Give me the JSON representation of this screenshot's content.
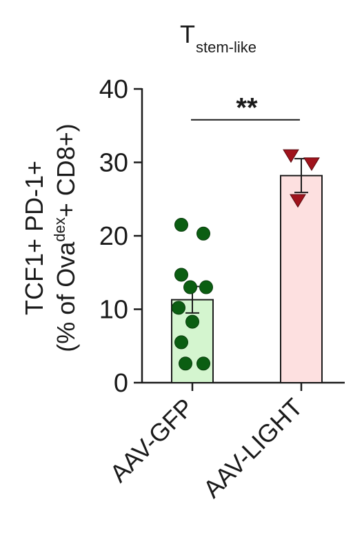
{
  "chart_data": {
    "type": "bar",
    "title": "T",
    "title_subscript": "stem-like",
    "ylabel_line1": "TCF1+ PD-1+",
    "ylabel_line2_pre": "(% of Ova",
    "ylabel_line2_sup": "dex",
    "ylabel_line2_post": "+ CD8+)",
    "ylim": [
      0,
      40
    ],
    "yticks": [
      0,
      10,
      20,
      30,
      40
    ],
    "ytick_labels": [
      "0",
      "10",
      "20",
      "30",
      "40"
    ],
    "categories": [
      "AAV-GFP",
      "AAV-LIGHT"
    ],
    "values": [
      11.3,
      28.2
    ],
    "error_sem": [
      1.8,
      2.3
    ],
    "bar_colors": [
      "#d4f5cf",
      "#fde0e0"
    ],
    "marker_colors": [
      "#0b5e12",
      "#a0131c"
    ],
    "marker_shapes": [
      "circle",
      "triangle-down"
    ],
    "points": [
      [
        21.5,
        20.3,
        14.7,
        13.0,
        13.0,
        10.2,
        8.3,
        5.5,
        2.6,
        2.6
      ],
      [
        31.0,
        29.9,
        24.9
      ]
    ],
    "significance": {
      "label": "**",
      "between": [
        "AAV-GFP",
        "AAV-LIGHT"
      ],
      "y": 35.8
    }
  }
}
